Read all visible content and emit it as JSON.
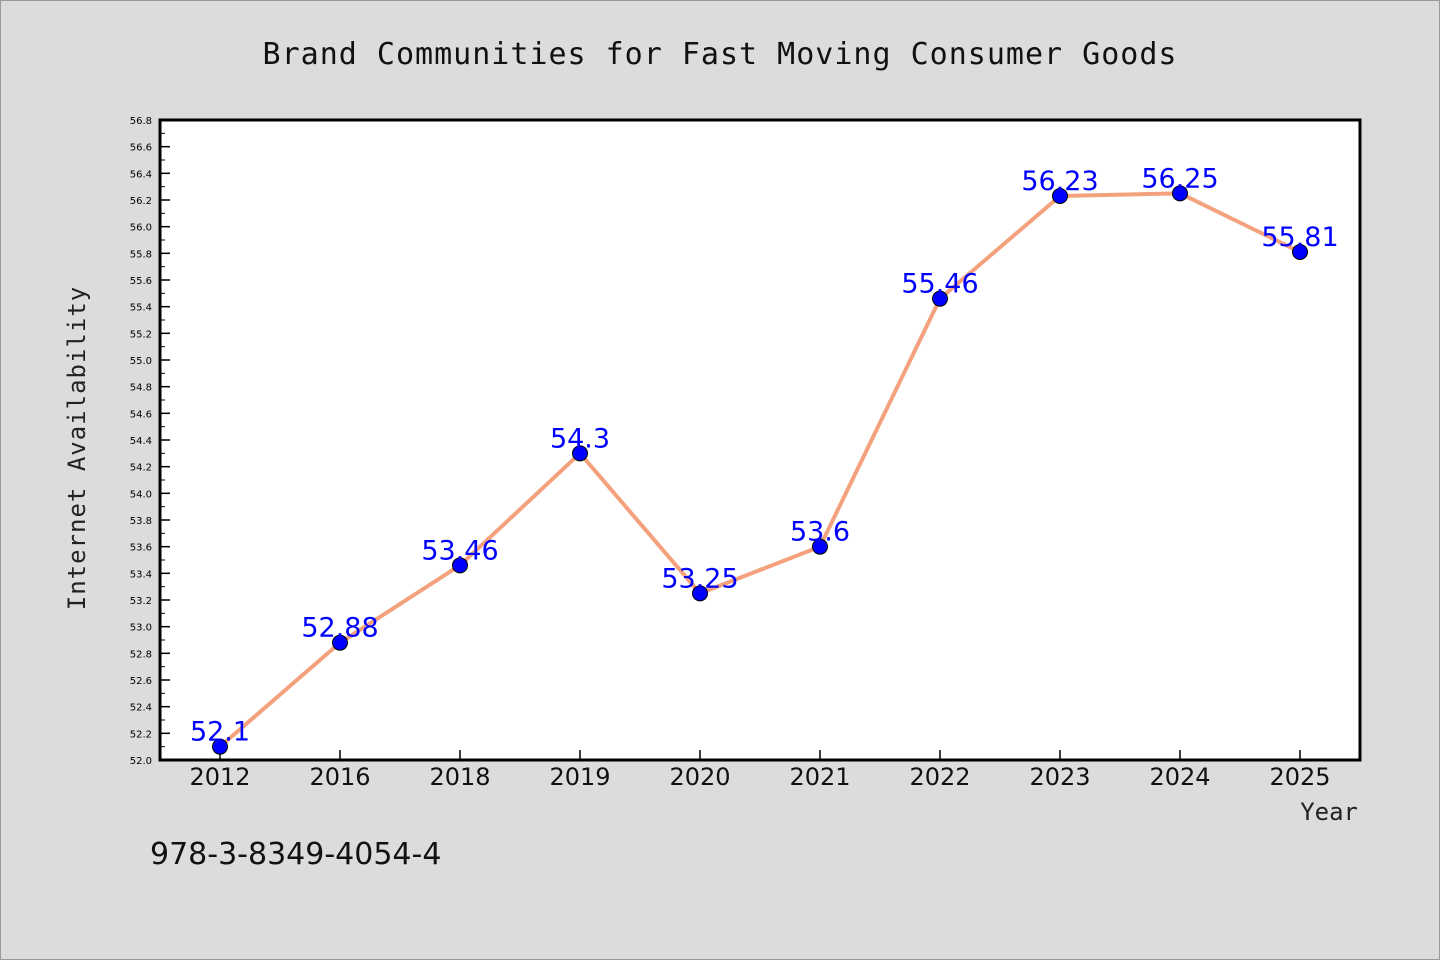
{
  "footer": {
    "code": "978-3-8349-4054-4"
  },
  "chart_data": {
    "type": "line",
    "title": "Brand Communities for Fast Moving Consumer Goods",
    "xlabel": "Year",
    "ylabel": "Internet Availability",
    "categories": [
      "2012",
      "2016",
      "2018",
      "2019",
      "2020",
      "2021",
      "2022",
      "2023",
      "2024",
      "2025"
    ],
    "series": [
      {
        "values": [
          52.1,
          52.88,
          53.46,
          54.3,
          53.25,
          53.6,
          55.46,
          56.23,
          56.25,
          55.81
        ],
        "data_labels": [
          "52.1",
          "52.88",
          "53.46",
          "54.3",
          "53.25",
          "53.6",
          "55.46",
          "56.23",
          "56.25",
          "55.81"
        ],
        "line_color": "#f4a27e",
        "marker_color": "#0000ff"
      }
    ],
    "ylim": [
      52.0,
      56.8
    ],
    "yticks": [
      "52.0",
      "52.2",
      "52.4",
      "52.6",
      "52.8",
      "53.0",
      "53.2",
      "53.4",
      "53.6",
      "53.8",
      "54.0",
      "54.2",
      "54.4",
      "54.6",
      "54.8",
      "55.0",
      "55.2",
      "55.4",
      "55.6",
      "55.8",
      "56.0",
      "56.2",
      "56.4",
      "56.6",
      "56.8"
    ],
    "grid": false,
    "legend": "none",
    "colors": {
      "background": "#dcdcdc",
      "plot_background": "#ffffff",
      "data_label": "#0000ff"
    }
  }
}
